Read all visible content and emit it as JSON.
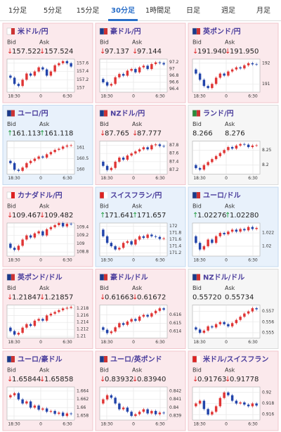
{
  "tabs": [
    "1分足",
    "5分足",
    "15分足",
    "30分足",
    "1時間足",
    "日足",
    "週足",
    "月足"
  ],
  "active_tab": 3,
  "labels": {
    "bid": "Bid",
    "ask": "Ask"
  },
  "xlabels": [
    "18:30",
    "0",
    "6:30"
  ],
  "arrows": {
    "up": "↑",
    "down": "↓"
  },
  "cards": [
    {
      "title": "米ドル/円",
      "dir": "down",
      "bid": "157.522",
      "ask": "157.524",
      "flag": [
        "#fff",
        "#c33"
      ],
      "ylim": [
        156.9,
        157.7
      ],
      "yticks": [
        157,
        157.2,
        157.4,
        157.6
      ],
      "open": 157.3,
      "closes": [
        157.25,
        157.1,
        157.05,
        157.2,
        157.35,
        157.3,
        157.4,
        157.5,
        157.45,
        157.3,
        157.4,
        157.55,
        157.6,
        157.65,
        157.6,
        157.52
      ]
    },
    {
      "title": "豪ドル/円",
      "dir": "down",
      "bid": "97.137",
      "ask": "97.144",
      "flag": [
        "#1a3a8a",
        "#c33"
      ],
      "ylim": [
        96.3,
        97.3
      ],
      "yticks": [
        96.4,
        96.6,
        96.8,
        97,
        97.2
      ],
      "open": 96.7,
      "closes": [
        96.6,
        96.5,
        96.55,
        96.75,
        96.85,
        96.8,
        96.95,
        97.0,
        96.9,
        97.05,
        97.1,
        97.0,
        97.15,
        97.2,
        97.18,
        97.14
      ]
    },
    {
      "title": "英ポンド/円",
      "dir": "down",
      "bid": "191.940",
      "ask": "191.950",
      "flag": [
        "#1a3a8a",
        "#c33"
      ],
      "ylim": [
        190.6,
        192.2
      ],
      "yticks": [
        191,
        192
      ],
      "open": 191.7,
      "closes": [
        191.5,
        191.2,
        190.9,
        190.8,
        191.0,
        191.3,
        191.5,
        191.4,
        191.6,
        191.7,
        191.8,
        191.75,
        191.9,
        192.0,
        191.95,
        191.94
      ]
    },
    {
      "title": "ユーロ/円",
      "dir": "up",
      "bid": "161.113",
      "ask": "161.118",
      "flag": [
        "#1a3a8a",
        "#c33"
      ],
      "ylim": [
        159.8,
        161.3
      ],
      "yticks": [
        160,
        160.5,
        161
      ],
      "open": 160.4,
      "closes": [
        160.3,
        160.0,
        159.95,
        160.1,
        160.3,
        160.4,
        160.5,
        160.6,
        160.55,
        160.7,
        160.8,
        160.9,
        160.95,
        161.05,
        161.1,
        161.11
      ]
    },
    {
      "title": "NZドル/円",
      "dir": "down",
      "bid": "87.765",
      "ask": "87.777",
      "flag": [
        "#1a3a8a",
        "#c33"
      ],
      "ylim": [
        87.1,
        87.9
      ],
      "yticks": [
        87.2,
        87.4,
        87.6,
        87.8
      ],
      "open": 87.4,
      "closes": [
        87.3,
        87.2,
        87.25,
        87.4,
        87.5,
        87.45,
        87.55,
        87.6,
        87.65,
        87.7,
        87.75,
        87.7,
        87.8,
        87.82,
        87.78,
        87.77
      ]
    },
    {
      "title": "ランド/円",
      "dir": "none",
      "bid": "8.266",
      "ask": "8.276",
      "flag": [
        "#2a8a3a",
        "#c33"
      ],
      "ylim": [
        8.17,
        8.28
      ],
      "yticks": [
        8.2,
        8.25
      ],
      "open": 8.2,
      "closes": [
        8.19,
        8.185,
        8.2,
        8.21,
        8.22,
        8.23,
        8.24,
        8.25,
        8.26,
        8.255,
        8.265,
        8.27,
        8.268,
        8.26,
        8.265,
        8.266
      ]
    },
    {
      "title": "カナダドル/円",
      "dir": "down",
      "bid": "109.467",
      "ask": "109.482",
      "flag": [
        "#fff",
        "#d22"
      ],
      "ylim": [
        108.7,
        109.5
      ],
      "yticks": [
        108.8,
        109,
        109.2,
        109.4
      ],
      "open": 109.0,
      "closes": [
        108.9,
        108.85,
        108.95,
        109.1,
        109.2,
        109.15,
        109.25,
        109.3,
        109.2,
        109.35,
        109.4,
        109.45,
        109.5,
        109.42,
        109.48,
        109.47
      ]
    },
    {
      "title": "スイスフラン/円",
      "dir": "up",
      "bid": "171.641",
      "ask": "171.657",
      "flag": [
        "#d22",
        "#fff"
      ],
      "ylim": [
        171.1,
        172.1
      ],
      "yticks": [
        171.2,
        171.4,
        171.6,
        171.8,
        172
      ],
      "open": 171.9,
      "closes": [
        171.7,
        171.5,
        171.4,
        171.3,
        171.35,
        171.5,
        171.55,
        171.45,
        171.6,
        171.7,
        171.65,
        171.75,
        171.7,
        171.68,
        171.62,
        171.64
      ]
    },
    {
      "title": "ユーロ/ドル",
      "dir": "up",
      "bid": "1.02276",
      "ask": "1.02280",
      "flag": [
        "#1a3a8a",
        "#c33"
      ],
      "ylim": [
        1.0185,
        1.0235
      ],
      "yticks": [
        1.02,
        1.022
      ],
      "open": 1.0215,
      "closes": [
        1.0205,
        1.0195,
        1.02,
        1.021,
        1.0205,
        1.0215,
        1.022,
        1.0218,
        1.0222,
        1.0225,
        1.0222,
        1.0226,
        1.0224,
        1.0229,
        1.0226,
        1.02276
      ]
    },
    {
      "title": "英ポンド/ドル",
      "dir": "down",
      "bid": "1.21847",
      "ask": "1.21857",
      "flag": [
        "#1a3a8a",
        "#c33"
      ],
      "ylim": [
        1.2095,
        1.219
      ],
      "yticks": [
        1.21,
        1.212,
        1.214,
        1.216,
        1.218
      ],
      "open": 1.2125,
      "closes": [
        1.2115,
        1.2105,
        1.211,
        1.2125,
        1.2135,
        1.213,
        1.2145,
        1.215,
        1.2145,
        1.216,
        1.2165,
        1.217,
        1.2175,
        1.218,
        1.2182,
        1.21847
      ]
    },
    {
      "title": "豪ドル/ドル",
      "dir": "down",
      "bid": "0.61663",
      "ask": "0.61672",
      "flag": [
        "#1a3a8a",
        "#c33"
      ],
      "ylim": [
        0.6132,
        0.6172
      ],
      "yticks": [
        0.614,
        0.615,
        0.616
      ],
      "open": 0.6145,
      "closes": [
        0.6142,
        0.6138,
        0.614,
        0.6145,
        0.615,
        0.6148,
        0.6152,
        0.6155,
        0.6153,
        0.6158,
        0.616,
        0.6158,
        0.6162,
        0.6165,
        0.6168,
        0.61663
      ]
    },
    {
      "title": "NZドル/ドル",
      "dir": "none",
      "bid": "0.55720",
      "ask": "0.55734",
      "flag": [
        "#1a3a8a",
        "#c33"
      ],
      "ylim": [
        0.5545,
        0.5576
      ],
      "yticks": [
        0.555,
        0.556,
        0.557
      ],
      "open": 0.5555,
      "closes": [
        0.5553,
        0.555,
        0.5552,
        0.5556,
        0.5555,
        0.5558,
        0.556,
        0.5558,
        0.5556,
        0.5559,
        0.5562,
        0.5565,
        0.5568,
        0.557,
        0.5573,
        0.5572
      ]
    },
    {
      "title": "ユーロ/豪ドル",
      "dir": "down",
      "bid": "1.65844",
      "ask": "1.65858",
      "flag": [
        "#1a3a8a",
        "#c33"
      ],
      "ylim": [
        1.657,
        1.665
      ],
      "yticks": [
        1.658,
        1.66,
        1.662,
        1.664
      ],
      "open": 1.6625,
      "closes": [
        1.663,
        1.6635,
        1.662,
        1.661,
        1.6615,
        1.66,
        1.6605,
        1.6595,
        1.6598,
        1.659,
        1.6592,
        1.6585,
        1.6588,
        1.658,
        1.6586,
        1.65844
      ]
    },
    {
      "title": "ユーロ/英ポンド",
      "dir": "down",
      "bid": "0.83932",
      "ask": "0.83940",
      "flag": [
        "#1a3a8a",
        "#c33"
      ],
      "ylim": [
        0.8385,
        0.8425
      ],
      "yticks": [
        0.839,
        0.84,
        0.841,
        0.842
      ],
      "open": 0.8405,
      "closes": [
        0.841,
        0.8415,
        0.8412,
        0.8405,
        0.8398,
        0.84,
        0.8395,
        0.839,
        0.8392,
        0.8395,
        0.8398,
        0.8393,
        0.8396,
        0.8392,
        0.8394,
        0.83932
      ]
    },
    {
      "title": "米ドル/スイスフラン",
      "dir": "down",
      "bid": "0.91763",
      "ask": "0.91778",
      "flag": [
        "#d22",
        "#fff"
      ],
      "ylim": [
        0.915,
        0.921
      ],
      "yticks": [
        0.916,
        0.918,
        0.92
      ],
      "open": 0.9175,
      "closes": [
        0.918,
        0.9185,
        0.917,
        0.916,
        0.9165,
        0.9175,
        0.919,
        0.92,
        0.9195,
        0.9185,
        0.918,
        0.9182,
        0.9178,
        0.9175,
        0.918,
        0.91763
      ]
    }
  ]
}
